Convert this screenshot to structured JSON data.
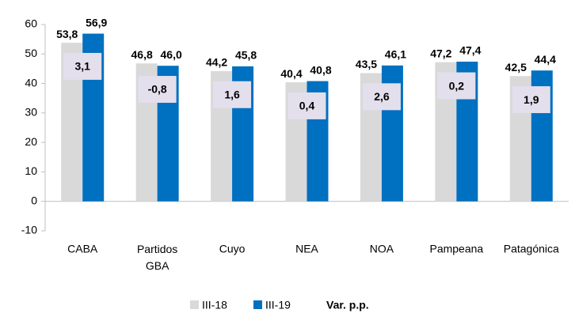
{
  "chart_data": {
    "type": "bar",
    "categories": [
      "CABA",
      "Partidos GBA",
      "Cuyo",
      "NEA",
      "NOA",
      "Pampeana",
      "Patagónica"
    ],
    "series": [
      {
        "name": "III-18",
        "color": "#d9d9d9",
        "values": [
          53.8,
          46.8,
          44.2,
          40.4,
          43.5,
          47.2,
          42.5
        ],
        "value_labels": [
          "53,8",
          "46,8",
          "44,2",
          "40,4",
          "43,5",
          "47,2",
          "42,5"
        ]
      },
      {
        "name": "III-19",
        "color": "#0070c0",
        "values": [
          56.9,
          46.0,
          45.8,
          40.8,
          46.1,
          47.4,
          44.4
        ],
        "value_labels": [
          "56,9",
          "46,0",
          "45,8",
          "40,8",
          "46,1",
          "47,4",
          "44,4"
        ]
      },
      {
        "name": "Var. p.p.",
        "color": "#7030a0",
        "label_box": "#e4dfec",
        "values": [
          3.1,
          -0.8,
          1.6,
          0.4,
          2.6,
          0.2,
          1.9
        ],
        "value_labels": [
          "3,1",
          "-0,8",
          "1,6",
          "0,4",
          "2,6",
          "0,2",
          "1,9"
        ]
      }
    ],
    "ylim": [
      -10,
      60
    ],
    "yticks": [
      -10,
      0,
      10,
      20,
      30,
      40,
      50,
      60
    ],
    "grid": false
  }
}
